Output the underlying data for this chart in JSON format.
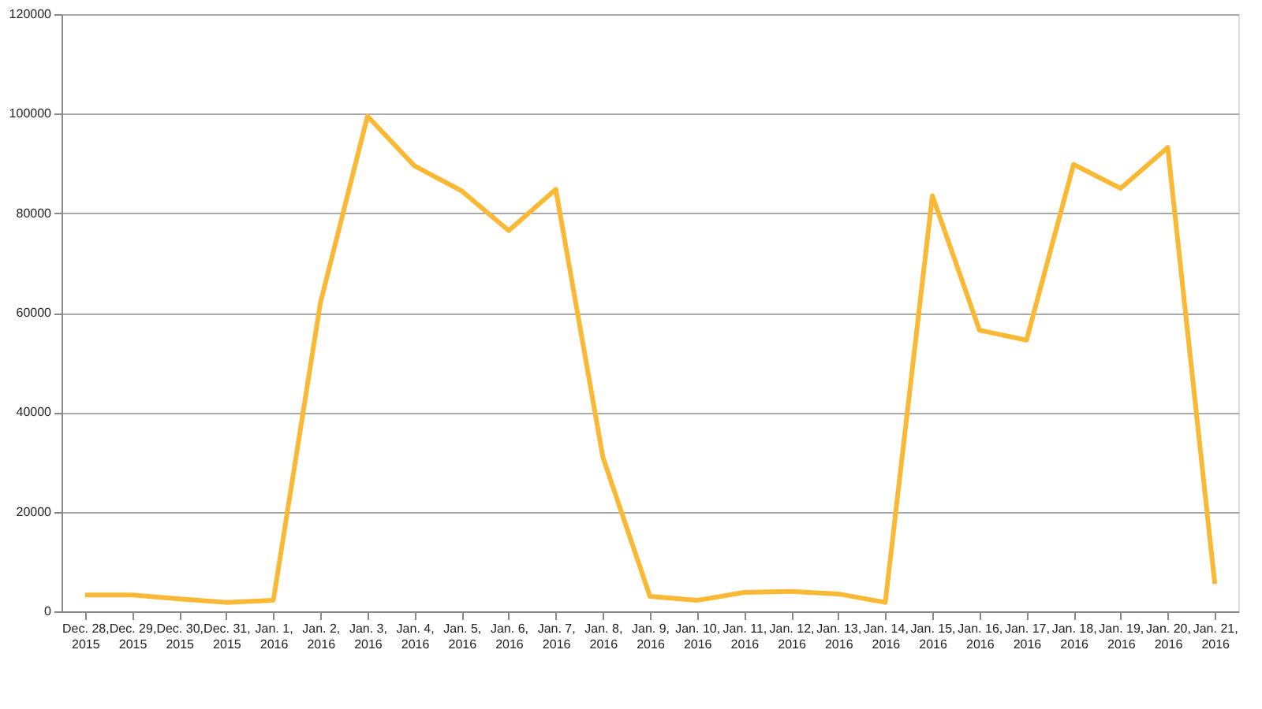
{
  "chart_data": {
    "type": "line",
    "categories": [
      "Dec. 28, 2015",
      "Dec. 29, 2015",
      "Dec. 30, 2015",
      "Dec. 31, 2015",
      "Jan. 1, 2016",
      "Jan. 2, 2016",
      "Jan. 3, 2016",
      "Jan. 4, 2016",
      "Jan. 5, 2016",
      "Jan. 6, 2016",
      "Jan. 7, 2016",
      "Jan. 8, 2016",
      "Jan. 9, 2016",
      "Jan. 10, 2016",
      "Jan. 11, 2016",
      "Jan. 12, 2016",
      "Jan. 13, 2016",
      "Jan. 14, 2016",
      "Jan. 15, 2016",
      "Jan. 16, 2016",
      "Jan. 17, 2016",
      "Jan. 18, 2016",
      "Jan. 19, 2016",
      "Jan. 20, 2016",
      "Jan. 21, 2016"
    ],
    "series": [
      {
        "color": "#f9b934",
        "values": [
          3300,
          3300,
          2500,
          1800,
          2200,
          62000,
          99500,
          89500,
          84500,
          76500,
          84800,
          31000,
          3000,
          2200,
          3800,
          4000,
          3500,
          1800,
          83500,
          56500,
          54500,
          89800,
          85000,
          93200,
          5500
        ]
      }
    ],
    "ylim": [
      0,
      120000
    ],
    "yticks": [
      0,
      20000,
      40000,
      60000,
      80000,
      100000,
      120000
    ],
    "grid": "y",
    "marker": "none",
    "line_style": "solid"
  }
}
